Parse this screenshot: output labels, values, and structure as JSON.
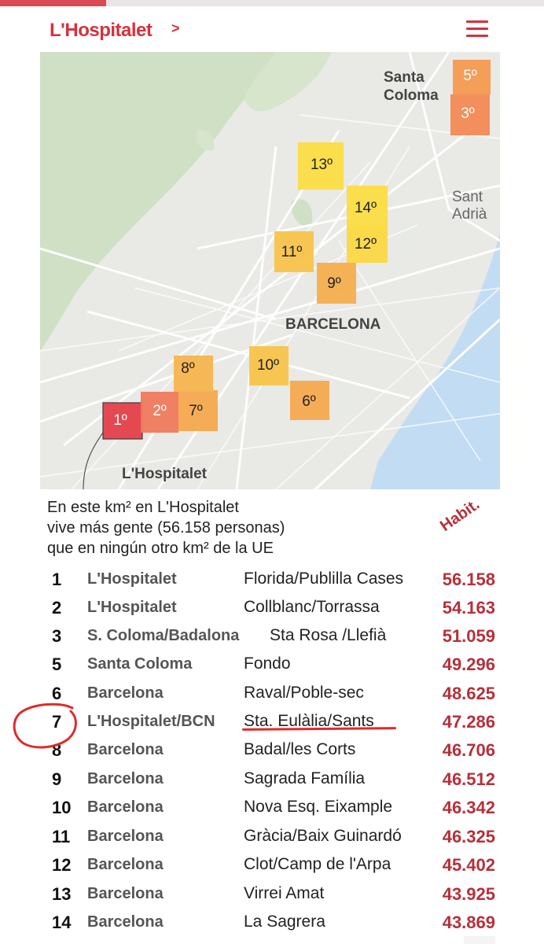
{
  "header": {
    "brand": "L'Hospitalet",
    "chevron": ">"
  },
  "map": {
    "labels": {
      "santa_coloma_1": "Santa",
      "santa_coloma_2": "Coloma",
      "sant_adria_1": "Sant",
      "sant_adria_2": "Adrià",
      "barcelona": "BARCELONA",
      "hospitalet": "L'Hospitalet"
    },
    "cells": [
      {
        "id": "r1",
        "label": "1º",
        "color": "#e4414b"
      },
      {
        "id": "r2",
        "label": "2º",
        "color": "#ef7a5c"
      },
      {
        "id": "r3",
        "label": "3º",
        "color": "#f28a55"
      },
      {
        "id": "r5",
        "label": "5º",
        "color": "#f49a50"
      },
      {
        "id": "r6",
        "label": "6º",
        "color": "#f5a94f"
      },
      {
        "id": "r7",
        "label": "7º",
        "color": "#f5a94f"
      },
      {
        "id": "r8",
        "label": "8º",
        "color": "#f7b54e"
      },
      {
        "id": "r9",
        "label": "9º",
        "color": "#f6ae4e"
      },
      {
        "id": "r10",
        "label": "10º",
        "color": "#f8c44a"
      },
      {
        "id": "r11",
        "label": "11º",
        "color": "#f8c44a"
      },
      {
        "id": "r12",
        "label": "12º",
        "color": "#fbd843"
      },
      {
        "id": "r13",
        "label": "13º",
        "color": "#fbdd42"
      },
      {
        "id": "r14",
        "label": "14º",
        "color": "#fbdd42"
      }
    ]
  },
  "caption": {
    "line1": "En este km² en L'Hospitalet",
    "line2": "vive más gente (56.158 personas)",
    "line3": "que en ningún otro km² de la UE"
  },
  "table": {
    "value_header": "Habit.",
    "rows": [
      {
        "rank": "1",
        "city": "L'Hospitalet",
        "neighborhood": "Florida/Publilla Cases",
        "inhabitants": "56.158"
      },
      {
        "rank": "2",
        "city": "L'Hospitalet",
        "neighborhood": "Collblanc/Torrassa",
        "inhabitants": "54.163"
      },
      {
        "rank": "3",
        "city": "S. Coloma/Badalona",
        "neighborhood": "Sta Rosa /Llefià",
        "inhabitants": "51.059"
      },
      {
        "rank": "5",
        "city": "Santa Coloma",
        "neighborhood": "Fondo",
        "inhabitants": "49.296"
      },
      {
        "rank": "6",
        "city": "Barcelona",
        "neighborhood": "Raval/Poble-sec",
        "inhabitants": "48.625"
      },
      {
        "rank": "7",
        "city": "L'Hospitalet/BCN",
        "neighborhood": "Sta. Eulàlia/Sants",
        "inhabitants": "47.286"
      },
      {
        "rank": "8",
        "city": "Barcelona",
        "neighborhood": "Badal/les Corts",
        "inhabitants": "46.706"
      },
      {
        "rank": "9",
        "city": "Barcelona",
        "neighborhood": "Sagrada Família",
        "inhabitants": "46.512"
      },
      {
        "rank": "10",
        "city": "Barcelona",
        "neighborhood": "Nova Esq. Eixample",
        "inhabitants": "46.342"
      },
      {
        "rank": "11",
        "city": "Barcelona",
        "neighborhood": "Gràcia/Baix Guinardó",
        "inhabitants": "46.325"
      },
      {
        "rank": "12",
        "city": "Barcelona",
        "neighborhood": "Clot/Camp de l'Arpa",
        "inhabitants": "45.402"
      },
      {
        "rank": "13",
        "city": "Barcelona",
        "neighborhood": "Virrei Amat",
        "inhabitants": "43.925"
      },
      {
        "rank": "14",
        "city": "Barcelona",
        "neighborhood": "La Sagrera",
        "inhabitants": "43.869"
      }
    ]
  },
  "annotation": {
    "color": "#e02a2a",
    "highlighted_rank": "7"
  },
  "colors": {
    "brand": "#d4323d",
    "value": "#b5303a",
    "water": "#c2dcf3",
    "park": "#cfe0c4"
  }
}
